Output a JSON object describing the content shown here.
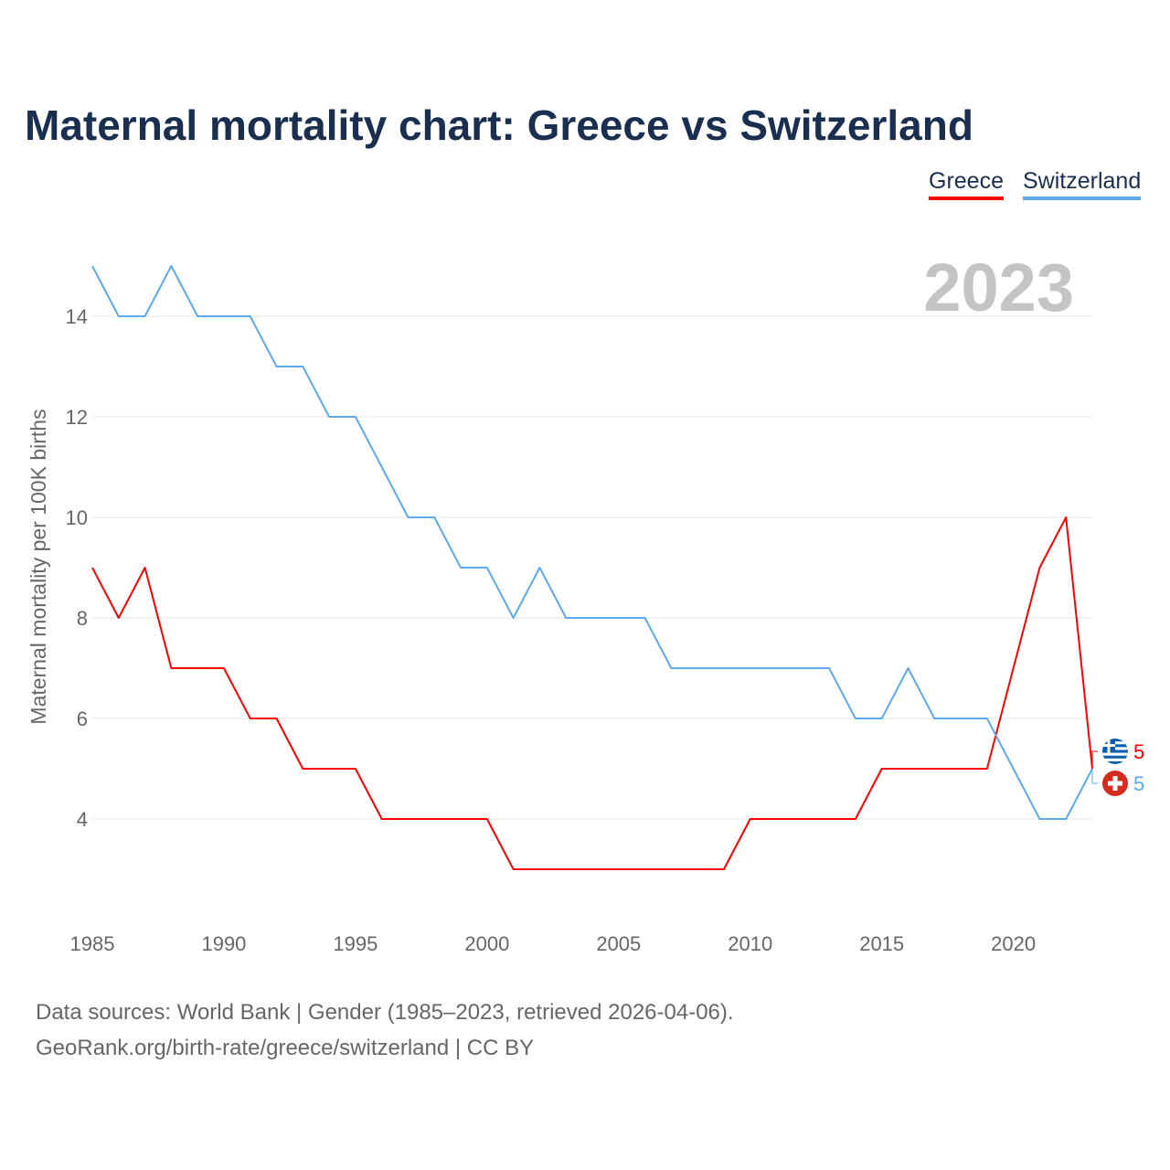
{
  "title": "Maternal mortality chart: Greece vs Switzerland",
  "legend": [
    "Greece",
    "Switzerland"
  ],
  "year_watermark": "2023",
  "footer": {
    "line1": "Data sources: World Bank | Gender (1985–2023, retrieved 2026-04-06).",
    "line2": "GeoRank.org/birth-rate/greece/switzerland | CC BY"
  },
  "chart_data": {
    "type": "line",
    "title": "Maternal mortality chart: Greece vs Switzerland",
    "xlabel": "",
    "ylabel": "Maternal mortality per 100K births",
    "xlim": [
      1985,
      2023
    ],
    "ylim": [
      2,
      16
    ],
    "xticks": [
      1985,
      1990,
      1995,
      2000,
      2005,
      2010,
      2015,
      2020
    ],
    "yticks": [
      4,
      6,
      8,
      10,
      12,
      14
    ],
    "grid": true,
    "legend_position": "top-right",
    "x": [
      1985,
      1986,
      1987,
      1988,
      1989,
      1990,
      1991,
      1992,
      1993,
      1994,
      1995,
      1996,
      1997,
      1998,
      1999,
      2000,
      2001,
      2002,
      2003,
      2004,
      2005,
      2006,
      2007,
      2008,
      2009,
      2010,
      2011,
      2012,
      2013,
      2014,
      2015,
      2016,
      2017,
      2018,
      2019,
      2020,
      2021,
      2022,
      2023
    ],
    "series": [
      {
        "name": "Greece",
        "color": "#ff0000",
        "end_label": "5",
        "values": [
          9,
          8,
          9,
          7,
          7,
          7,
          6,
          6,
          5,
          5,
          5,
          4,
          4,
          4,
          4,
          4,
          3,
          3,
          3,
          3,
          3,
          3,
          3,
          3,
          3,
          4,
          4,
          4,
          4,
          4,
          5,
          5,
          5,
          5,
          5,
          7,
          9,
          10,
          5
        ]
      },
      {
        "name": "Switzerland",
        "color": "#5da9ee",
        "end_label": "5",
        "values": [
          15,
          14,
          14,
          15,
          14,
          14,
          14,
          13,
          13,
          12,
          12,
          11,
          10,
          10,
          9,
          9,
          8,
          9,
          8,
          8,
          8,
          8,
          7,
          7,
          7,
          7,
          7,
          7,
          7,
          6,
          6,
          7,
          6,
          6,
          6,
          5,
          4,
          4,
          5
        ]
      }
    ]
  }
}
